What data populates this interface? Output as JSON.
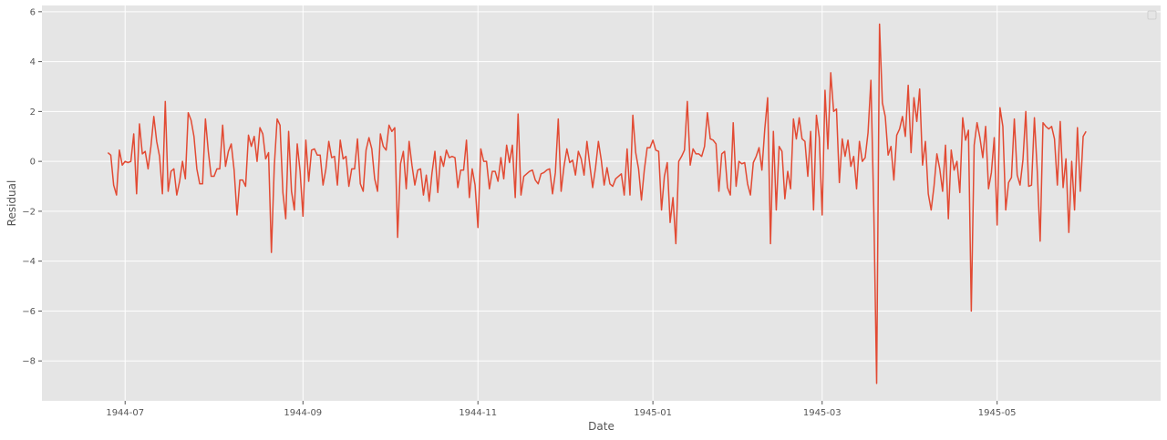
{
  "chart_data": {
    "type": "line",
    "title": "",
    "xlabel": "Date",
    "ylabel": "Residual",
    "xlim": [
      "1944-06-02",
      "1945-06-27"
    ],
    "ylim": [
      -9.6,
      6.25
    ],
    "grid": true,
    "legend": "top-right (empty)",
    "x_ticks": [
      {
        "date": "1944-07-01",
        "label": "1944-07"
      },
      {
        "date": "1944-09-01",
        "label": "1944-09"
      },
      {
        "date": "1944-11-01",
        "label": "1944-11"
      },
      {
        "date": "1945-01-01",
        "label": "1945-01"
      },
      {
        "date": "1945-03-01",
        "label": "1945-03"
      },
      {
        "date": "1945-05-01",
        "label": "1945-05"
      }
    ],
    "y_ticks": [
      {
        "value": 6,
        "label": "6"
      },
      {
        "value": 4,
        "label": "4"
      },
      {
        "value": 2,
        "label": "2"
      },
      {
        "value": 0,
        "label": "0"
      },
      {
        "value": -2,
        "label": "−2"
      },
      {
        "value": -4,
        "label": "−4"
      },
      {
        "value": -6,
        "label": "−6"
      },
      {
        "value": -8,
        "label": "−8"
      }
    ],
    "series": [
      {
        "name": "",
        "color": "#E24A33",
        "start_date": "1944-06-25",
        "values": [
          0.35,
          0.25,
          -0.95,
          -1.35,
          0.45,
          -0.15,
          0.0,
          -0.05,
          0.0,
          1.1,
          -1.3,
          1.5,
          0.3,
          0.4,
          -0.3,
          0.6,
          1.8,
          0.8,
          0.2,
          -1.3,
          2.4,
          -1.2,
          -0.4,
          -0.3,
          -1.35,
          -0.8,
          0.0,
          -0.7,
          1.95,
          1.65,
          1.0,
          -0.3,
          -0.9,
          -0.9,
          1.7,
          0.4,
          -0.6,
          -0.6,
          -0.3,
          -0.3,
          1.45,
          -0.2,
          0.4,
          0.7,
          -0.35,
          -2.15,
          -0.75,
          -0.75,
          -1.0,
          1.05,
          0.6,
          1.0,
          0.0,
          1.35,
          1.1,
          0.1,
          0.35,
          -3.65,
          -0.2,
          1.7,
          1.45,
          -1.25,
          -2.3,
          1.2,
          -1.2,
          -1.95,
          0.7,
          -0.4,
          -2.2,
          0.85,
          -0.8,
          0.45,
          0.5,
          0.25,
          0.25,
          -0.95,
          -0.3,
          0.8,
          0.15,
          0.2,
          -0.95,
          0.85,
          0.1,
          0.2,
          -1.0,
          -0.3,
          -0.3,
          0.9,
          -0.9,
          -1.2,
          0.45,
          0.95,
          0.5,
          -0.7,
          -1.2,
          1.1,
          0.6,
          0.45,
          1.45,
          1.2,
          1.35,
          -3.05,
          -0.1,
          0.4,
          -1.1,
          0.8,
          -0.15,
          -0.95,
          -0.35,
          -0.3,
          -1.35,
          -0.55,
          -1.6,
          -0.45,
          0.4,
          -1.25,
          0.2,
          -0.2,
          0.45,
          0.15,
          0.2,
          0.15,
          -1.05,
          -0.35,
          -0.35,
          0.85,
          -1.45,
          -0.3,
          -0.95,
          -2.65,
          0.5,
          0.0,
          0.0,
          -1.1,
          -0.4,
          -0.4,
          -0.8,
          0.15,
          -0.7,
          0.65,
          -0.05,
          0.65,
          -1.45,
          1.9,
          -1.35,
          -0.6,
          -0.5,
          -0.4,
          -0.35,
          -0.75,
          -0.9,
          -0.5,
          -0.45,
          -0.35,
          -0.3,
          -1.3,
          -0.45,
          1.7,
          -1.2,
          -0.2,
          0.5,
          -0.05,
          0.05,
          -0.55,
          0.4,
          0.1,
          -0.55,
          0.8,
          -0.15,
          -1.05,
          -0.25,
          0.8,
          0.05,
          -0.95,
          -0.25,
          -0.9,
          -1.0,
          -0.7,
          -0.6,
          -0.5,
          -1.35,
          0.5,
          -1.35,
          1.85,
          0.35,
          -0.3,
          -1.55,
          -0.35,
          0.55,
          0.55,
          0.85,
          0.45,
          0.4,
          -1.95,
          -0.6,
          -0.05,
          -2.45,
          -1.45,
          -3.3,
          0.0,
          0.2,
          0.45,
          2.4,
          -0.15,
          0.5,
          0.3,
          0.3,
          0.2,
          0.6,
          1.95,
          0.9,
          0.85,
          0.7,
          -1.2,
          0.3,
          0.4,
          -1.05,
          -1.35,
          1.55,
          -1.0,
          0.0,
          -0.1,
          -0.05,
          -0.9,
          -1.35,
          -0.05,
          0.2,
          0.55,
          -0.35,
          1.3,
          2.55,
          -3.3,
          1.2,
          -1.95,
          0.6,
          0.4,
          -1.5,
          -0.4,
          -1.1,
          1.7,
          0.9,
          1.75,
          0.9,
          0.8,
          -0.6,
          1.2,
          -1.95,
          1.85,
          0.95,
          -2.15,
          2.85,
          0.5,
          3.55,
          2.0,
          2.1,
          -0.85,
          0.9,
          0.2,
          0.85,
          -0.2,
          0.2,
          -1.1,
          0.8,
          0.0,
          0.15,
          1.15,
          3.25,
          -1.9,
          -8.9,
          5.5,
          2.35,
          1.8,
          0.25,
          0.6,
          -0.75,
          1.05,
          1.3,
          1.8,
          1.0,
          3.05,
          0.35,
          2.55,
          1.6,
          2.9,
          -0.15,
          0.8,
          -1.3,
          -1.95,
          -1.0,
          0.3,
          -0.3,
          -1.2,
          0.65,
          -2.3,
          0.45,
          -0.35,
          0.0,
          -1.25,
          1.75,
          0.85,
          1.25,
          -6.0,
          0.65,
          1.55,
          0.95,
          0.15,
          1.4,
          -1.1,
          -0.45,
          0.95,
          -2.55,
          2.15,
          1.4,
          -1.95,
          -0.85,
          -0.65,
          1.7,
          -0.55,
          -0.95,
          0.05,
          2.0,
          -1.0,
          -0.95,
          1.75,
          -0.4,
          -3.2,
          1.55,
          1.4,
          1.3,
          1.4,
          0.9,
          -0.95,
          1.6,
          -1.05,
          0.1,
          -2.85,
          0.0,
          -1.95,
          1.35,
          -1.2,
          1.0,
          1.2
        ]
      }
    ]
  }
}
